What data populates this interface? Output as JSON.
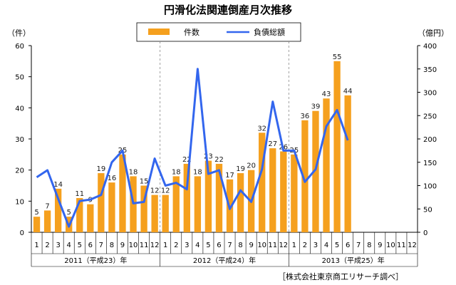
{
  "chart_data": {
    "type": "bar+line",
    "title": "円滑化法関連倒産月次推移",
    "left_unit": "（件）",
    "right_unit": "（億円）",
    "left_ylim": [
      0,
      60
    ],
    "left_ticks": [
      "0",
      "10",
      "20",
      "30",
      "40",
      "50",
      "60"
    ],
    "right_ylim": [
      0,
      400
    ],
    "right_ticks": [
      "0",
      "50",
      "100",
      "150",
      "200",
      "250",
      "300",
      "350",
      "400"
    ],
    "legend": {
      "bar_label": "件数",
      "line_label": "負債総額",
      "placement": "top"
    },
    "months": [
      "1",
      "2",
      "3",
      "4",
      "5",
      "6",
      "7",
      "8",
      "9",
      "10",
      "11",
      "12",
      "1",
      "2",
      "3",
      "4",
      "5",
      "6",
      "7",
      "8",
      "9",
      "10",
      "11",
      "12",
      "1",
      "2",
      "3",
      "4",
      "5",
      "6",
      "7",
      "8",
      "9",
      "10",
      "11",
      "12"
    ],
    "years": [
      "2011（平成23）年",
      "2012（平成24）年",
      "2013（平成25）年"
    ],
    "series": [
      {
        "name": "件数",
        "axis": "left",
        "values": [
          5,
          7,
          14,
          5,
          11,
          9,
          19,
          16,
          25,
          18,
          15,
          12,
          12,
          18,
          22,
          18,
          23,
          22,
          17,
          19,
          20,
          32,
          27,
          26,
          25,
          36,
          39,
          43,
          55,
          44,
          null,
          null,
          null,
          null,
          null,
          null
        ],
        "labels": [
          "5",
          "7",
          "14",
          "5",
          "11",
          "9",
          "19",
          "16",
          "25",
          "18",
          "15",
          "12",
          "12",
          "18",
          "22",
          "18",
          "23",
          "22",
          "17",
          "19",
          "20",
          "32",
          "27",
          "26",
          "25",
          "36",
          "39",
          "43",
          "55",
          "44",
          "",
          "",
          "",
          "",
          "",
          ""
        ]
      },
      {
        "name": "負債総額",
        "axis": "right",
        "values": [
          118,
          133,
          72,
          12,
          67,
          70,
          80,
          150,
          175,
          62,
          65,
          158,
          100,
          106,
          92,
          350,
          125,
          133,
          50,
          90,
          65,
          135,
          280,
          175,
          175,
          108,
          135,
          227,
          262,
          197,
          null,
          null,
          null,
          null,
          null,
          null
        ]
      }
    ],
    "colors": {
      "bar": "#f5a01e",
      "line": "#3366ee",
      "axis": "#000000",
      "divider": "#888888"
    },
    "credit": "［株式会社東京商工リサーチ調べ］"
  }
}
